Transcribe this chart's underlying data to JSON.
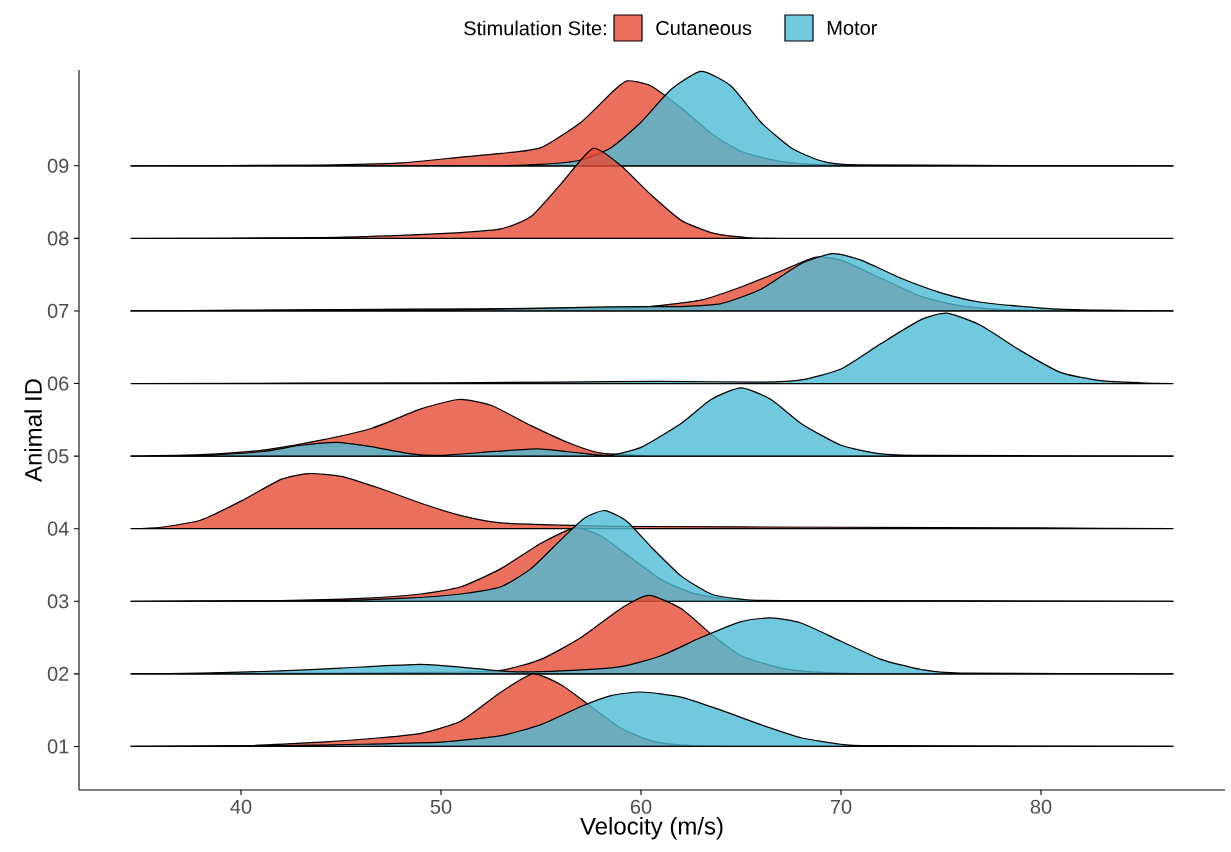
{
  "chart_data": {
    "type": "area",
    "xlabel": "Velocity (m/s)",
    "ylabel": "Animal ID",
    "legend_title": "Stimulation Site:",
    "legend": "top",
    "xlim": [
      31.9,
      89.2
    ],
    "xticks": [
      40,
      50,
      60,
      70,
      80
    ],
    "ylim": [
      0.4,
      10.32
    ],
    "yticks": [
      {
        "value": 1,
        "label": "01"
      },
      {
        "value": 2,
        "label": "02"
      },
      {
        "value": 3,
        "label": "03"
      },
      {
        "value": 4,
        "label": "04"
      },
      {
        "value": 5,
        "label": "05"
      },
      {
        "value": 6,
        "label": "06"
      },
      {
        "value": 7,
        "label": "07"
      },
      {
        "value": 8,
        "label": "08"
      },
      {
        "value": 9,
        "label": "09"
      }
    ],
    "series": [
      {
        "name": "Cutaneous",
        "color": "#e64b35",
        "x": [
          34.5,
          40,
          44,
          47,
          49,
          51,
          53,
          54.6,
          56,
          57.5,
          59,
          60.5,
          62,
          65,
          86.6
        ],
        "values": [
          1,
          1.01,
          1.06,
          1.12,
          1.18,
          1.35,
          1.75,
          2.0,
          1.85,
          1.55,
          1.25,
          1.08,
          1.02,
          1,
          1
        ]
      },
      {
        "name": "Motor",
        "color": "#4dbbd5",
        "x": [
          34.5,
          42,
          46,
          50,
          53,
          55,
          57,
          58.5,
          60,
          62,
          64,
          66,
          68,
          70,
          72,
          86.6
        ],
        "values": [
          1,
          1.01,
          1.03,
          1.06,
          1.15,
          1.3,
          1.55,
          1.7,
          1.75,
          1.68,
          1.5,
          1.3,
          1.12,
          1.03,
          1.01,
          1
        ]
      },
      {
        "color": "#e64b35",
        "x": [
          34.5,
          45,
          50,
          53,
          55,
          57,
          59,
          60.4,
          62,
          63.5,
          65,
          67,
          69,
          72,
          86.6
        ],
        "values": [
          2,
          2.01,
          2.02,
          2.05,
          2.2,
          2.5,
          2.9,
          3.08,
          2.9,
          2.55,
          2.25,
          2.08,
          2.02,
          2,
          2
        ]
      },
      {
        "color": "#4dbbd5",
        "x": [
          34.5,
          38,
          42,
          45,
          49,
          51.5,
          53.5,
          56,
          59,
          61,
          63,
          65,
          66.5,
          68,
          70,
          72,
          74,
          76,
          86.6
        ],
        "values": [
          2,
          2.01,
          2.04,
          2.08,
          2.13,
          2.08,
          2.03,
          2.04,
          2.1,
          2.25,
          2.5,
          2.72,
          2.77,
          2.7,
          2.45,
          2.2,
          2.06,
          2.01,
          2
        ]
      },
      {
        "color": "#e64b35",
        "x": [
          34.5,
          42,
          46,
          49,
          51,
          53,
          55,
          56.7,
          58,
          59.5,
          61,
          62.5,
          64,
          66,
          86.6
        ],
        "values": [
          3,
          3.01,
          3.04,
          3.1,
          3.2,
          3.45,
          3.8,
          4.01,
          3.9,
          3.6,
          3.3,
          3.12,
          3.04,
          3.01,
          3
        ]
      },
      {
        "color": "#4dbbd5",
        "x": [
          34.5,
          44,
          48,
          51,
          53,
          54.5,
          56,
          57.2,
          58.2,
          59.3,
          60.5,
          62,
          63.5,
          65,
          67,
          86.6
        ],
        "values": [
          3,
          3.01,
          3.04,
          3.1,
          3.2,
          3.45,
          3.85,
          4.15,
          4.25,
          4.1,
          3.75,
          3.35,
          3.1,
          3.03,
          3.01,
          3
        ]
      },
      {
        "color": "#e64b35",
        "x": [
          34.5,
          36,
          38,
          40,
          42,
          43.4,
          45,
          47,
          49,
          51,
          53,
          56,
          60,
          70,
          80,
          86.6
        ],
        "values": [
          4,
          4.02,
          4.12,
          4.38,
          4.68,
          4.76,
          4.72,
          4.55,
          4.35,
          4.18,
          4.08,
          4.05,
          4.03,
          4.02,
          4.01,
          4
        ]
      },
      {
        "color": "#e64b35",
        "x": [
          34.5,
          38,
          41,
          44,
          46.5,
          49,
          50.9,
          52.5,
          54.5,
          56.5,
          58,
          60,
          62,
          86.6
        ],
        "values": [
          5,
          5.02,
          5.08,
          5.22,
          5.38,
          5.65,
          5.78,
          5.7,
          5.42,
          5.17,
          5.04,
          5.01,
          5,
          5
        ]
      },
      {
        "color": "#4dbbd5",
        "x": [
          34.5,
          38,
          41,
          43,
          44.8,
          46.5,
          48.5,
          50,
          52,
          54.8,
          57,
          58.4,
          60,
          62,
          63.5,
          65,
          66.5,
          68,
          70,
          72,
          74,
          86.6
        ],
        "values": [
          5,
          5.01,
          5.06,
          5.15,
          5.19,
          5.13,
          5.03,
          5.01,
          5.05,
          5.1,
          5.04,
          5.01,
          5.12,
          5.45,
          5.78,
          5.94,
          5.78,
          5.45,
          5.15,
          5.03,
          5.01,
          5
        ]
      },
      {
        "color": "#4dbbd5",
        "x": [
          34.5,
          50,
          56,
          61,
          66,
          68,
          70,
          72,
          74,
          75.3,
          77,
          79,
          81,
          83,
          85,
          86.6
        ],
        "values": [
          6,
          6.01,
          6.02,
          6.03,
          6.02,
          6.05,
          6.2,
          6.55,
          6.88,
          6.97,
          6.8,
          6.45,
          6.15,
          6.04,
          6.01,
          6
        ]
      },
      {
        "color": "#e64b35",
        "x": [
          34.5,
          40,
          45,
          52,
          57,
          60,
          63,
          65,
          67,
          68.7,
          70,
          72,
          74,
          76,
          79,
          86.6
        ],
        "values": [
          7,
          7.01,
          7.02,
          7.03,
          7.04,
          7.05,
          7.15,
          7.33,
          7.55,
          7.74,
          7.7,
          7.45,
          7.2,
          7.07,
          7.01,
          7
        ]
      },
      {
        "color": "#4dbbd5",
        "x": [
          34.5,
          45,
          52,
          57,
          60,
          62,
          64,
          66,
          68,
          69.6,
          71,
          73,
          75,
          77,
          80,
          83,
          86.6
        ],
        "values": [
          7,
          7.01,
          7.02,
          7.05,
          7.06,
          7.06,
          7.1,
          7.3,
          7.65,
          7.79,
          7.7,
          7.45,
          7.25,
          7.12,
          7.04,
          7.01,
          7
        ]
      },
      {
        "color": "#e64b35",
        "x": [
          34.5,
          44,
          48,
          51,
          53,
          54.5,
          56,
          57.6,
          59,
          60.5,
          62,
          63.5,
          65,
          67,
          86.6
        ],
        "values": [
          8,
          8.01,
          8.04,
          8.08,
          8.13,
          8.3,
          8.75,
          9.24,
          9.0,
          8.6,
          8.25,
          8.08,
          8.02,
          8,
          8
        ]
      },
      {
        "color": "#e64b35",
        "x": [
          34.5,
          44,
          48,
          51,
          53,
          55,
          57,
          58.5,
          59.3,
          60.5,
          62,
          63.5,
          65,
          67,
          70,
          86.6
        ],
        "values": [
          9,
          9.01,
          9.04,
          9.12,
          9.17,
          9.25,
          9.6,
          10.0,
          10.17,
          10.1,
          9.8,
          9.45,
          9.2,
          9.06,
          9.01,
          9
        ]
      },
      {
        "color": "#4dbbd5",
        "x": [
          34.5,
          52,
          55,
          57,
          58.5,
          60,
          61.5,
          63,
          64.5,
          66,
          67.5,
          69,
          71,
          86.6
        ],
        "values": [
          9,
          9,
          9.02,
          9.08,
          9.25,
          9.6,
          10.05,
          10.3,
          10.1,
          9.6,
          9.25,
          9.07,
          9.01,
          9
        ]
      }
    ]
  }
}
